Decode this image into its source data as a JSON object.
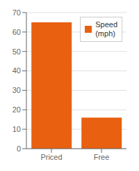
{
  "chart_data": {
    "type": "bar",
    "categories": [
      "Priced",
      "Free"
    ],
    "series": [
      {
        "name": "Speed\n(mph)",
        "color": "#E86010",
        "values": [
          65,
          16
        ]
      }
    ],
    "ylim": [
      0,
      70
    ],
    "yticks": [
      0,
      10,
      20,
      30,
      40,
      50,
      60,
      70
    ],
    "grid": true,
    "legend": "upper right"
  }
}
